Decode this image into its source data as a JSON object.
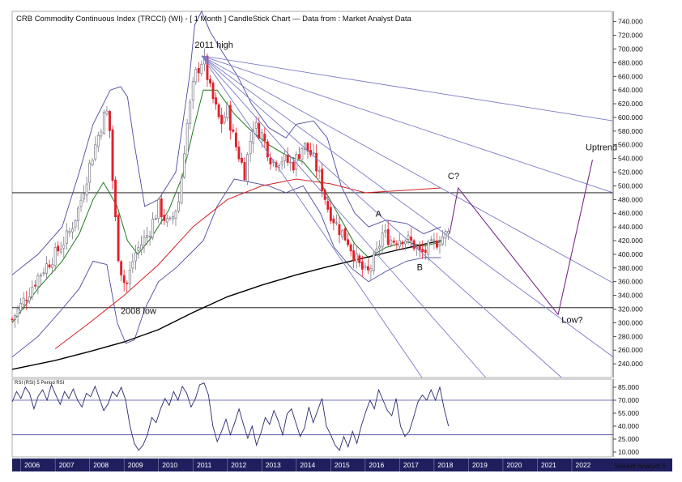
{
  "colors": {
    "up_candle": "#7a7a86",
    "down_candle": "#e2202a",
    "bollinger": "#4a4aa0",
    "ma_short": "#1f7a1f",
    "ma_medium": "#d42020",
    "ma_long": "#000000",
    "fan": "#7a7ac8",
    "projection": "#7a2a8a",
    "axis_band": "#1f1f5f"
  },
  "chart_data": [
    {
      "type": "candlestick",
      "title": "CRB Commodity Continuous Index (TRCCI) (WI) -  [ 1 Month ] CandleStick Chart — Data from : Market Analyst Data",
      "x_axis": {
        "tick_labels": [
          "2006",
          "2007",
          "2008",
          "2009",
          "2010",
          "2011",
          "2012",
          "2013",
          "2014",
          "2015",
          "2016",
          "2017",
          "2018",
          "2019",
          "2020",
          "2021",
          "2022"
        ],
        "range": [
          2005.75,
          2023.2
        ]
      },
      "y_axis": {
        "tick_labels": [
          "740.000",
          "720.000",
          "700.000",
          "680.000",
          "660.000",
          "640.000",
          "620.000",
          "600.000",
          "580.000",
          "560.000",
          "540.000",
          "520.000",
          "500.000",
          "480.000",
          "460.000",
          "440.000",
          "420.000",
          "400.000",
          "380.000",
          "360.000",
          "340.000",
          "320.000",
          "300.000",
          "280.000",
          "260.000",
          "240.000"
        ],
        "range": [
          220,
          755
        ],
        "position": "right"
      },
      "watermark": "Market Analyst 6",
      "horizontal_levels": [
        490,
        322
      ],
      "anchors": [
        {
          "x": 2005.75,
          "y": 305
        },
        {
          "x": 2006.0,
          "y": 325
        },
        {
          "x": 2006.5,
          "y": 368
        },
        {
          "x": 2007.0,
          "y": 400
        },
        {
          "x": 2007.4,
          "y": 430
        },
        {
          "x": 2007.7,
          "y": 470
        },
        {
          "x": 2008.0,
          "y": 530
        },
        {
          "x": 2008.4,
          "y": 600
        },
        {
          "x": 2008.55,
          "y": 610
        },
        {
          "x": 2008.7,
          "y": 480
        },
        {
          "x": 2008.85,
          "y": 390
        },
        {
          "x": 2009.05,
          "y": 350
        },
        {
          "x": 2009.3,
          "y": 400
        },
        {
          "x": 2009.7,
          "y": 430
        },
        {
          "x": 2010.0,
          "y": 470
        },
        {
          "x": 2010.3,
          "y": 440
        },
        {
          "x": 2010.6,
          "y": 480
        },
        {
          "x": 2010.8,
          "y": 580
        },
        {
          "x": 2011.05,
          "y": 660
        },
        {
          "x": 2011.3,
          "y": 688
        },
        {
          "x": 2011.5,
          "y": 640
        },
        {
          "x": 2011.8,
          "y": 590
        },
        {
          "x": 2012.0,
          "y": 610
        },
        {
          "x": 2012.2,
          "y": 565
        },
        {
          "x": 2012.5,
          "y": 520
        },
        {
          "x": 2012.75,
          "y": 590
        },
        {
          "x": 2013.0,
          "y": 575
        },
        {
          "x": 2013.3,
          "y": 535
        },
        {
          "x": 2013.6,
          "y": 540
        },
        {
          "x": 2013.9,
          "y": 530
        },
        {
          "x": 2014.2,
          "y": 560
        },
        {
          "x": 2014.45,
          "y": 545
        },
        {
          "x": 2014.7,
          "y": 510
        },
        {
          "x": 2014.9,
          "y": 470
        },
        {
          "x": 2015.2,
          "y": 440
        },
        {
          "x": 2015.5,
          "y": 420
        },
        {
          "x": 2015.8,
          "y": 385
        },
        {
          "x": 2016.05,
          "y": 370
        },
        {
          "x": 2016.3,
          "y": 395
        },
        {
          "x": 2016.5,
          "y": 430
        },
        {
          "x": 2016.8,
          "y": 420
        },
        {
          "x": 2017.1,
          "y": 425
        },
        {
          "x": 2017.4,
          "y": 415
        },
        {
          "x": 2017.6,
          "y": 400
        },
        {
          "x": 2017.9,
          "y": 410
        },
        {
          "x": 2018.2,
          "y": 425
        },
        {
          "x": 2018.4,
          "y": 430
        }
      ],
      "bollinger_upper": [
        {
          "x": 2005.75,
          "y": 370
        },
        {
          "x": 2006.5,
          "y": 400
        },
        {
          "x": 2007.2,
          "y": 440
        },
        {
          "x": 2007.7,
          "y": 520
        },
        {
          "x": 2008.1,
          "y": 590
        },
        {
          "x": 2008.6,
          "y": 640
        },
        {
          "x": 2008.9,
          "y": 645
        },
        {
          "x": 2009.1,
          "y": 630
        },
        {
          "x": 2009.3,
          "y": 560
        },
        {
          "x": 2009.6,
          "y": 470
        },
        {
          "x": 2010.0,
          "y": 480
        },
        {
          "x": 2010.5,
          "y": 520
        },
        {
          "x": 2010.9,
          "y": 660
        },
        {
          "x": 2011.05,
          "y": 735
        },
        {
          "x": 2011.25,
          "y": 755
        },
        {
          "x": 2011.5,
          "y": 725
        },
        {
          "x": 2011.8,
          "y": 700
        },
        {
          "x": 2012.3,
          "y": 660
        },
        {
          "x": 2012.7,
          "y": 620
        },
        {
          "x": 2013.2,
          "y": 585
        },
        {
          "x": 2013.7,
          "y": 570
        },
        {
          "x": 2014.0,
          "y": 590
        },
        {
          "x": 2014.5,
          "y": 595
        },
        {
          "x": 2014.9,
          "y": 570
        },
        {
          "x": 2015.3,
          "y": 500
        },
        {
          "x": 2015.7,
          "y": 460
        },
        {
          "x": 2016.1,
          "y": 440
        },
        {
          "x": 2016.6,
          "y": 450
        },
        {
          "x": 2017.2,
          "y": 445
        },
        {
          "x": 2017.7,
          "y": 430
        },
        {
          "x": 2018.2,
          "y": 440
        }
      ],
      "bollinger_lower": [
        {
          "x": 2005.75,
          "y": 250
        },
        {
          "x": 2006.5,
          "y": 280
        },
        {
          "x": 2007.2,
          "y": 320
        },
        {
          "x": 2007.7,
          "y": 350
        },
        {
          "x": 2008.1,
          "y": 390
        },
        {
          "x": 2008.5,
          "y": 385
        },
        {
          "x": 2008.8,
          "y": 300
        },
        {
          "x": 2009.05,
          "y": 270
        },
        {
          "x": 2009.3,
          "y": 275
        },
        {
          "x": 2009.6,
          "y": 320
        },
        {
          "x": 2010.0,
          "y": 360
        },
        {
          "x": 2010.5,
          "y": 380
        },
        {
          "x": 2010.9,
          "y": 400
        },
        {
          "x": 2011.3,
          "y": 420
        },
        {
          "x": 2011.7,
          "y": 470
        },
        {
          "x": 2012.2,
          "y": 510
        },
        {
          "x": 2012.7,
          "y": 505
        },
        {
          "x": 2013.2,
          "y": 500
        },
        {
          "x": 2013.7,
          "y": 490
        },
        {
          "x": 2014.2,
          "y": 500
        },
        {
          "x": 2014.7,
          "y": 460
        },
        {
          "x": 2015.1,
          "y": 410
        },
        {
          "x": 2015.6,
          "y": 380
        },
        {
          "x": 2016.1,
          "y": 360
        },
        {
          "x": 2016.6,
          "y": 375
        },
        {
          "x": 2017.2,
          "y": 390
        },
        {
          "x": 2017.7,
          "y": 395
        },
        {
          "x": 2018.2,
          "y": 395
        }
      ],
      "ma_short": [
        {
          "x": 2005.75,
          "y": 300
        },
        {
          "x": 2006.5,
          "y": 350
        },
        {
          "x": 2007.2,
          "y": 390
        },
        {
          "x": 2007.7,
          "y": 430
        },
        {
          "x": 2008.1,
          "y": 480
        },
        {
          "x": 2008.4,
          "y": 505
        },
        {
          "x": 2008.8,
          "y": 470
        },
        {
          "x": 2009.1,
          "y": 420
        },
        {
          "x": 2009.4,
          "y": 400
        },
        {
          "x": 2009.8,
          "y": 425
        },
        {
          "x": 2010.3,
          "y": 465
        },
        {
          "x": 2010.7,
          "y": 515
        },
        {
          "x": 2011.0,
          "y": 580
        },
        {
          "x": 2011.3,
          "y": 640
        },
        {
          "x": 2011.7,
          "y": 640
        },
        {
          "x": 2012.2,
          "y": 605
        },
        {
          "x": 2012.7,
          "y": 580
        },
        {
          "x": 2013.2,
          "y": 560
        },
        {
          "x": 2013.7,
          "y": 545
        },
        {
          "x": 2014.2,
          "y": 535
        },
        {
          "x": 2014.7,
          "y": 505
        },
        {
          "x": 2015.2,
          "y": 460
        },
        {
          "x": 2015.7,
          "y": 415
        },
        {
          "x": 2016.1,
          "y": 395
        },
        {
          "x": 2016.6,
          "y": 410
        },
        {
          "x": 2017.2,
          "y": 418
        },
        {
          "x": 2017.7,
          "y": 412
        },
        {
          "x": 2018.2,
          "y": 418
        }
      ],
      "ma_medium": [
        {
          "x": 2007.0,
          "y": 262
        },
        {
          "x": 2008.0,
          "y": 300
        },
        {
          "x": 2009.0,
          "y": 340
        },
        {
          "x": 2010.0,
          "y": 385
        },
        {
          "x": 2011.0,
          "y": 440
        },
        {
          "x": 2012.0,
          "y": 480
        },
        {
          "x": 2013.0,
          "y": 500
        },
        {
          "x": 2014.0,
          "y": 510
        },
        {
          "x": 2015.0,
          "y": 503
        },
        {
          "x": 2016.0,
          "y": 490
        },
        {
          "x": 2017.0,
          "y": 493
        },
        {
          "x": 2018.2,
          "y": 497
        }
      ],
      "ma_long": [
        {
          "x": 2005.75,
          "y": 232
        },
        {
          "x": 2007.0,
          "y": 245
        },
        {
          "x": 2008.0,
          "y": 258
        },
        {
          "x": 2009.0,
          "y": 272
        },
        {
          "x": 2010.0,
          "y": 290
        },
        {
          "x": 2011.0,
          "y": 315
        },
        {
          "x": 2012.0,
          "y": 338
        },
        {
          "x": 2013.0,
          "y": 355
        },
        {
          "x": 2014.0,
          "y": 370
        },
        {
          "x": 2015.0,
          "y": 383
        },
        {
          "x": 2016.0,
          "y": 395
        },
        {
          "x": 2017.0,
          "y": 407
        },
        {
          "x": 2018.2,
          "y": 420
        }
      ],
      "fan_lines": {
        "origin": {
          "x": 2011.25,
          "y": 690
        },
        "targets": [
          {
            "x": 2023.2,
            "y": 595
          },
          {
            "x": 2023.2,
            "y": 490
          },
          {
            "x": 2023.2,
            "y": 358
          },
          {
            "x": 2023.2,
            "y": 250
          },
          {
            "x": 2021.7,
            "y": 220
          },
          {
            "x": 2019.5,
            "y": 220
          },
          {
            "x": 2017.65,
            "y": 220
          }
        ]
      },
      "projection_path": [
        {
          "x": 2018.45,
          "y": 430
        },
        {
          "x": 2018.7,
          "y": 497
        },
        {
          "x": 2021.6,
          "y": 312
        },
        {
          "x": 2022.6,
          "y": 538
        }
      ],
      "annotations": [
        {
          "label": "2011 high",
          "x": 2011.05,
          "y": 702
        },
        {
          "label": "2008 low",
          "x": 2008.9,
          "y": 313
        },
        {
          "label": "A",
          "x": 2016.3,
          "y": 455
        },
        {
          "label": "B",
          "x": 2017.5,
          "y": 377
        },
        {
          "label": "C?",
          "x": 2018.4,
          "y": 510
        },
        {
          "label": "Low?",
          "x": 2021.7,
          "y": 300
        },
        {
          "label": "Uptrend",
          "x": 2022.4,
          "y": 552
        }
      ]
    },
    {
      "type": "line",
      "title": "RSI (RSI) 5 Period RSI",
      "y_axis": {
        "tick_labels": [
          "85.000",
          "70.000",
          "55.000",
          "40.000",
          "25.000",
          "10.000"
        ],
        "range": [
          0,
          100
        ],
        "position": "right"
      },
      "horizontal_levels": [
        70,
        30
      ],
      "values": [
        68,
        80,
        72,
        85,
        78,
        60,
        75,
        82,
        70,
        88,
        76,
        65,
        80,
        72,
        83,
        70,
        62,
        78,
        74,
        86,
        72,
        58,
        66,
        80,
        74,
        85,
        70,
        40,
        20,
        12,
        18,
        30,
        50,
        44,
        60,
        72,
        64,
        80,
        70,
        86,
        78,
        62,
        72,
        88,
        90,
        76,
        40,
        22,
        34,
        48,
        30,
        44,
        60,
        42,
        26,
        40,
        18,
        32,
        50,
        42,
        58,
        46,
        30,
        54,
        60,
        44,
        28,
        38,
        62,
        44,
        58,
        72,
        40,
        30,
        18,
        12,
        28,
        16,
        34,
        20,
        40,
        56,
        70,
        60,
        82,
        70,
        58,
        52,
        72,
        40,
        28,
        34,
        50,
        68,
        76,
        70,
        82,
        70,
        85,
        60,
        40
      ]
    }
  ]
}
